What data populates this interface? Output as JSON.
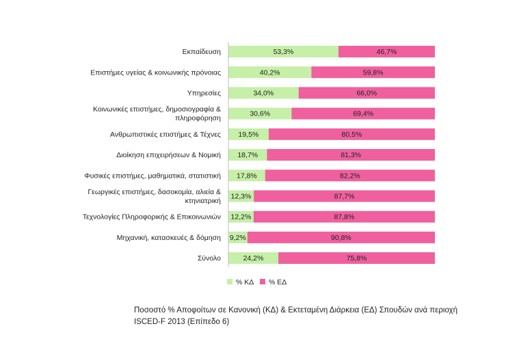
{
  "chart_data": {
    "type": "bar",
    "orientation": "horizontal",
    "stacked": true,
    "percent_stacked": true,
    "categories": [
      "Εκπαίδευση",
      "Επιστήμες υγείας & κοινωνικής πρόνοιας",
      "Υπηρεσίες",
      "Κοινωνικές επιστήμες, δημοσιογραφία & πληροφόρηση",
      "Ανθρωπιστικές επιστήμες & Τέχνες",
      "Διοίκηση επιχειρήσεων & Νομική",
      "Φυσικές επιστήμες, μαθηματικά, στατιστική",
      "Γεωργικές επιστήμες, δασοκομία, αλιεία & κτηνιατρική",
      "Τεχνολογίες Πληροφορικής & Επικοινωνιών",
      "Μηχανική, κατασκευές & δόμηση",
      "Σύνολο"
    ],
    "category_lines": [
      [
        "Εκπαίδευση"
      ],
      [
        "Επιστήμες υγείας & κοινωνικής πρόνοιας"
      ],
      [
        "Υπηρεσίες"
      ],
      [
        "Κοινωνικές επιστήμες, δημοσιογραφία &",
        "πληροφόρηση"
      ],
      [
        "Ανθρωπιστικές επιστήμες & Τέχνες"
      ],
      [
        "Διοίκηση επιχειρήσεων & Νομική"
      ],
      [
        "Φυσικές επιστήμες, μαθηματικά, στατιστική"
      ],
      [
        "Γεωργικές επιστήμες, δασοκομία, αλιεία &",
        "κτηνιατρική"
      ],
      [
        "Τεχνολογίες Πληροφορικής & Επικοινωνιών"
      ],
      [
        "Μηχανική, κατασκευές & δόμηση"
      ],
      [
        "Σύνολο"
      ]
    ],
    "series": [
      {
        "name": "% ΚΔ",
        "color": "#c6efa8",
        "values": [
          53.3,
          40.2,
          34.0,
          30.6,
          19.5,
          18.7,
          17.8,
          12.3,
          12.2,
          9.2,
          24.2
        ],
        "labels": [
          "53,3%",
          "40,2%",
          "34,0%",
          "30,6%",
          "19,5%",
          "18,7%",
          "17,8%",
          "12,3%",
          "12,2%",
          "9,2%",
          "24,2%"
        ]
      },
      {
        "name": "% ΕΔ",
        "color": "#f0609e",
        "values": [
          46.7,
          59.8,
          66.0,
          69.4,
          80.5,
          81.3,
          82.2,
          87.7,
          87.8,
          90.8,
          75.8
        ],
        "labels": [
          "46,7%",
          "59,8%",
          "66,0%",
          "69,4%",
          "80,5%",
          "81,3%",
          "82,2%",
          "87,7%",
          "87,8%",
          "90,8%",
          "75,8%"
        ]
      }
    ],
    "xlim": [
      0,
      100
    ],
    "grid": false,
    "legend": "bottom"
  },
  "caption": "Ποσοστό % Αποφοίτων σε Κανονική (ΚΔ) & Εκτεταμένη Διάρκεια (ΕΔ) Σπουδών ανά περιοχή ISCED-F 2013 (Επίπεδο 6)"
}
